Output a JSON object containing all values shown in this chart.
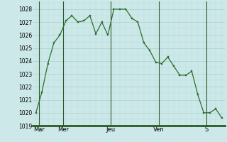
{
  "background_color": "#cce8e8",
  "plot_bg_color": "#cce8e8",
  "line_color": "#2d6e2d",
  "marker_color": "#2d6e2d",
  "grid_major_color": "#aacfcf",
  "grid_minor_color": "#bddede",
  "ylim": [
    1019,
    1028.6
  ],
  "yticks": [
    1019,
    1020,
    1021,
    1022,
    1023,
    1024,
    1025,
    1026,
    1027,
    1028
  ],
  "day_labels": [
    "Mar",
    "Mer",
    "Jeu",
    "Ven",
    "S"
  ],
  "day_tick_positions": [
    0.5,
    4.5,
    12.5,
    20.5,
    28.5
  ],
  "vline_positions": [
    1,
    5,
    13,
    21,
    29
  ],
  "x_values": [
    0,
    1,
    2,
    3,
    4,
    5,
    6,
    7,
    8,
    9,
    10,
    11,
    12,
    13,
    14,
    15,
    16,
    17,
    18,
    19,
    20,
    21,
    22,
    23,
    24,
    25,
    26,
    27,
    28,
    29,
    30,
    31
  ],
  "y_values": [
    1020.0,
    1021.6,
    1023.8,
    1025.4,
    1026.0,
    1027.1,
    1027.5,
    1027.0,
    1027.1,
    1027.5,
    1026.1,
    1027.0,
    1026.0,
    1028.0,
    1028.0,
    1028.0,
    1027.3,
    1027.0,
    1025.4,
    1024.8,
    1023.9,
    1023.8,
    1024.3,
    1023.6,
    1022.9,
    1022.9,
    1023.2,
    1021.4,
    1020.0,
    1020.0,
    1020.3,
    1019.6
  ]
}
